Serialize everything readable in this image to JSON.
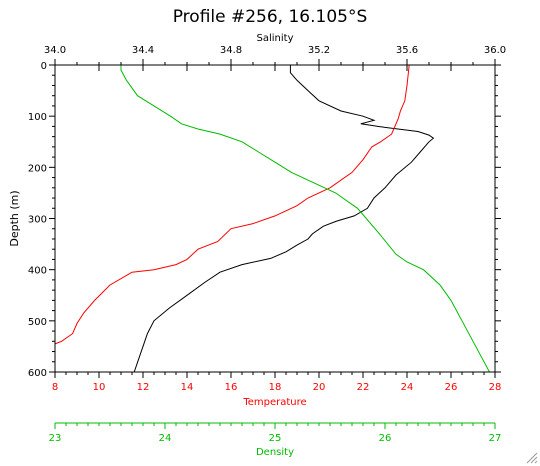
{
  "chart_data": {
    "type": "line",
    "title": "Profile #256, 16.105°S",
    "y_axis": {
      "label": "Depth (m)",
      "range": [
        0,
        600
      ],
      "inverted": true,
      "ticks": [
        0,
        100,
        200,
        300,
        400,
        500,
        600
      ]
    },
    "x_axes": [
      {
        "id": "salinity",
        "label": "Salinity",
        "position": "top",
        "color": "#000000",
        "range": [
          34.0,
          36.0
        ],
        "ticks": [
          "34.0",
          "34.4",
          "34.8",
          "35.2",
          "35.6",
          "36.0"
        ]
      },
      {
        "id": "temperature",
        "label": "Temperature",
        "position": "bottom",
        "color": "#ff0000",
        "range": [
          8,
          28
        ],
        "ticks": [
          "8",
          "10",
          "12",
          "14",
          "16",
          "18",
          "20",
          "22",
          "24",
          "26",
          "28"
        ]
      },
      {
        "id": "density",
        "label": "Density",
        "position": "bottom-detached",
        "color": "#00bb00",
        "range": [
          23,
          27
        ],
        "ticks": [
          "23",
          "24",
          "25",
          "26",
          "27"
        ]
      }
    ],
    "series": [
      {
        "name": "Salinity",
        "axis": "salinity",
        "color": "#000000",
        "points": [
          [
            35.07,
            0
          ],
          [
            35.07,
            15
          ],
          [
            35.1,
            30
          ],
          [
            35.15,
            50
          ],
          [
            35.2,
            70
          ],
          [
            35.3,
            90
          ],
          [
            35.4,
            100
          ],
          [
            35.45,
            108
          ],
          [
            35.39,
            115
          ],
          [
            35.5,
            122
          ],
          [
            35.65,
            130
          ],
          [
            35.7,
            137
          ],
          [
            35.72,
            143
          ],
          [
            35.7,
            150
          ],
          [
            35.66,
            170
          ],
          [
            35.62,
            190
          ],
          [
            35.55,
            215
          ],
          [
            35.5,
            240
          ],
          [
            35.45,
            260
          ],
          [
            35.42,
            280
          ],
          [
            35.36,
            295
          ],
          [
            35.28,
            305
          ],
          [
            35.22,
            315
          ],
          [
            35.17,
            330
          ],
          [
            35.15,
            340
          ],
          [
            35.1,
            352
          ],
          [
            35.05,
            365
          ],
          [
            34.98,
            378
          ],
          [
            34.85,
            390
          ],
          [
            34.75,
            405
          ],
          [
            34.68,
            425
          ],
          [
            34.6,
            450
          ],
          [
            34.52,
            475
          ],
          [
            34.45,
            500
          ],
          [
            34.42,
            525
          ],
          [
            34.4,
            550
          ],
          [
            34.38,
            575
          ],
          [
            34.36,
            600
          ]
        ]
      },
      {
        "name": "Temperature",
        "axis": "temperature",
        "color": "#ff0000",
        "points": [
          [
            24.1,
            0
          ],
          [
            24.05,
            20
          ],
          [
            24.0,
            40
          ],
          [
            23.9,
            70
          ],
          [
            23.7,
            90
          ],
          [
            23.6,
            105
          ],
          [
            23.5,
            115
          ],
          [
            23.4,
            125
          ],
          [
            23.3,
            135
          ],
          [
            22.8,
            150
          ],
          [
            22.4,
            160
          ],
          [
            22.0,
            185
          ],
          [
            21.5,
            210
          ],
          [
            20.5,
            240
          ],
          [
            19.5,
            260
          ],
          [
            19.0,
            275
          ],
          [
            18.0,
            295
          ],
          [
            17.0,
            310
          ],
          [
            16.0,
            320
          ],
          [
            15.4,
            345
          ],
          [
            14.5,
            360
          ],
          [
            14.0,
            380
          ],
          [
            13.5,
            390
          ],
          [
            12.5,
            400
          ],
          [
            11.5,
            405
          ],
          [
            10.5,
            430
          ],
          [
            9.8,
            460
          ],
          [
            9.3,
            485
          ],
          [
            9.0,
            505
          ],
          [
            8.8,
            525
          ],
          [
            8.3,
            540
          ],
          [
            8.0,
            545
          ]
        ]
      },
      {
        "name": "Density",
        "axis": "density",
        "color": "#00bb00",
        "points": [
          [
            23.6,
            0
          ],
          [
            23.6,
            10
          ],
          [
            23.65,
            30
          ],
          [
            23.75,
            60
          ],
          [
            23.9,
            80
          ],
          [
            24.05,
            100
          ],
          [
            24.15,
            115
          ],
          [
            24.3,
            125
          ],
          [
            24.5,
            135
          ],
          [
            24.7,
            150
          ],
          [
            24.85,
            170
          ],
          [
            25.0,
            190
          ],
          [
            25.15,
            210
          ],
          [
            25.35,
            230
          ],
          [
            25.55,
            250
          ],
          [
            25.75,
            280
          ],
          [
            25.95,
            330
          ],
          [
            26.1,
            370
          ],
          [
            26.2,
            385
          ],
          [
            26.35,
            400
          ],
          [
            26.5,
            430
          ],
          [
            26.6,
            460
          ],
          [
            26.7,
            500
          ],
          [
            26.8,
            540
          ],
          [
            26.9,
            580
          ],
          [
            26.95,
            600
          ]
        ]
      }
    ],
    "grid": false,
    "legend": "none"
  }
}
